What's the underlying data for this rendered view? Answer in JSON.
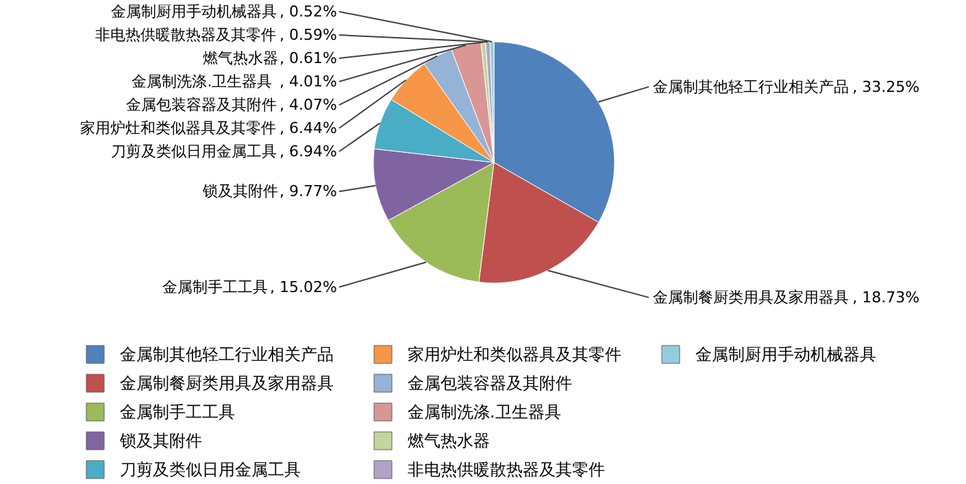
{
  "chart_data": {
    "type": "pie",
    "categories": [
      "金属制其他轻工行业相关产品",
      "金属制餐厨类用具及家用器具",
      "金属制手工工具",
      "锁及其附件",
      "刀剪及类似日用金属工具",
      "家用炉灶和类似器具及其零件",
      "金属包装容器及其附件",
      "金属制洗涤.卫生器具",
      "燃气热水器",
      "非电热供暖散热器及其零件",
      "金属制厨用手动机械器具"
    ],
    "values": [
      33.25,
      18.73,
      15.02,
      9.77,
      6.94,
      6.44,
      4.07,
      4.01,
      0.61,
      0.59,
      0.52
    ],
    "colors": [
      "#4f81bd",
      "#c0504d",
      "#9bbb59",
      "#8064a2",
      "#4bacc6",
      "#f79646",
      "#95b3d7",
      "#d99694",
      "#c3d69b",
      "#b3a2c7",
      "#93cddd"
    ],
    "value_labels": [
      ", 33.25%",
      ", 18.73%",
      ", 15.02%",
      ", 9.77%",
      ", 6.94%",
      ", 6.44%",
      ", 4.07%",
      ", 4.01%",
      ", 0.61%",
      ", 0.59%",
      ", 0.52%"
    ],
    "legend": "bottom"
  }
}
